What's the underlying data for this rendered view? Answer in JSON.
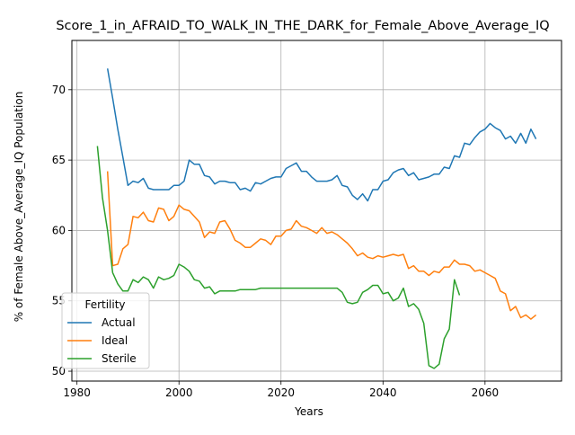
{
  "chart_data": {
    "type": "line",
    "title": "Score_1_in_AFRAID_TO_WALK_IN_THE_DARK_for_Female_Above_Average_IQ",
    "xlabel": "Years",
    "ylabel": "% of Female Above_Average_IQ Population",
    "xlim": [
      1979,
      2075
    ],
    "ylim": [
      49.3,
      73.5
    ],
    "x_ticks": [
      1980,
      2000,
      2020,
      2040,
      2060
    ],
    "y_ticks": [
      50,
      55,
      60,
      65,
      70
    ],
    "grid": true,
    "legend": {
      "title": "Fertility",
      "position": "lower-left"
    },
    "series": [
      {
        "name": "Actual",
        "color": "#1f77b4",
        "x": [
          1986,
          1987,
          1988,
          1989,
          1990,
          1991,
          1992,
          1993,
          1994,
          1995,
          1996,
          1997,
          1998,
          1999,
          2000,
          2001,
          2002,
          2003,
          2004,
          2005,
          2006,
          2007,
          2008,
          2009,
          2010,
          2011,
          2012,
          2013,
          2014,
          2015,
          2016,
          2017,
          2018,
          2019,
          2020,
          2021,
          2022,
          2023,
          2024,
          2025,
          2026,
          2027,
          2028,
          2029,
          2030,
          2031,
          2032,
          2033,
          2034,
          2035,
          2036,
          2037,
          2038,
          2039,
          2040,
          2041,
          2042,
          2043,
          2044,
          2045,
          2046,
          2047,
          2048,
          2049,
          2050,
          2051,
          2052,
          2053,
          2054,
          2055,
          2056,
          2057,
          2058,
          2059,
          2060,
          2061,
          2062,
          2063,
          2064,
          2065,
          2066,
          2067,
          2068,
          2069,
          2070
        ],
        "values": [
          71.5,
          69.4,
          67.2,
          65.2,
          63.2,
          63.5,
          63.4,
          63.7,
          63.0,
          62.9,
          62.9,
          62.9,
          62.9,
          63.2,
          63.2,
          63.5,
          65.0,
          64.7,
          64.7,
          63.9,
          63.8,
          63.3,
          63.5,
          63.5,
          63.4,
          63.4,
          62.9,
          63.0,
          62.8,
          63.4,
          63.3,
          63.5,
          63.7,
          63.8,
          63.8,
          64.4,
          64.6,
          64.8,
          64.2,
          64.2,
          63.8,
          63.5,
          63.5,
          63.5,
          63.6,
          63.9,
          63.2,
          63.1,
          62.5,
          62.2,
          62.6,
          62.1,
          62.9,
          62.9,
          63.5,
          63.6,
          64.1,
          64.3,
          64.4,
          63.9,
          64.1,
          63.6,
          63.7,
          63.8,
          64.0,
          64.0,
          64.5,
          64.4,
          65.3,
          65.2,
          66.2,
          66.1,
          66.6,
          67.0,
          67.2,
          67.6,
          67.3,
          67.1,
          66.5,
          66.7,
          66.2,
          66.9,
          66.2,
          67.2,
          66.5
        ]
      },
      {
        "name": "Ideal",
        "color": "#ff7f0e",
        "x": [
          1986,
          1987,
          1988,
          1989,
          1990,
          1991,
          1992,
          1993,
          1994,
          1995,
          1996,
          1997,
          1998,
          1999,
          2000,
          2001,
          2002,
          2003,
          2004,
          2005,
          2006,
          2007,
          2008,
          2009,
          2010,
          2011,
          2012,
          2013,
          2014,
          2015,
          2016,
          2017,
          2018,
          2019,
          2020,
          2021,
          2022,
          2023,
          2024,
          2025,
          2026,
          2027,
          2028,
          2029,
          2030,
          2031,
          2032,
          2033,
          2034,
          2035,
          2036,
          2037,
          2038,
          2039,
          2040,
          2041,
          2042,
          2043,
          2044,
          2045,
          2046,
          2047,
          2048,
          2049,
          2050,
          2051,
          2052,
          2053,
          2054,
          2055,
          2056,
          2057,
          2058,
          2059,
          2060,
          2061,
          2062,
          2063,
          2064,
          2065,
          2066,
          2067,
          2068,
          2069,
          2070
        ],
        "values": [
          64.2,
          57.5,
          57.6,
          58.7,
          59.0,
          61.0,
          60.9,
          61.3,
          60.7,
          60.6,
          61.6,
          61.5,
          60.7,
          61.0,
          61.8,
          61.5,
          61.4,
          61.0,
          60.6,
          59.5,
          59.9,
          59.8,
          60.6,
          60.7,
          60.1,
          59.3,
          59.1,
          58.8,
          58.8,
          59.1,
          59.4,
          59.3,
          59.0,
          59.6,
          59.6,
          60.0,
          60.1,
          60.7,
          60.3,
          60.2,
          60.0,
          59.8,
          60.2,
          59.8,
          59.9,
          59.7,
          59.4,
          59.1,
          58.7,
          58.2,
          58.4,
          58.1,
          58.0,
          58.2,
          58.1,
          58.2,
          58.3,
          58.2,
          58.3,
          57.3,
          57.5,
          57.1,
          57.1,
          56.8,
          57.1,
          57.0,
          57.4,
          57.4,
          57.9,
          57.6,
          57.6,
          57.5,
          57.1,
          57.2,
          57.0,
          56.8,
          56.6,
          55.7,
          55.5,
          54.3,
          54.6,
          53.8,
          54.0,
          53.7,
          54.0
        ]
      },
      {
        "name": "Sterile",
        "color": "#2ca02c",
        "x": [
          1984,
          1985,
          1986,
          1987,
          1988,
          1989,
          1990,
          1991,
          1992,
          1993,
          1994,
          1995,
          1996,
          1997,
          1998,
          1999,
          2000,
          2001,
          2002,
          2003,
          2004,
          2005,
          2006,
          2007,
          2008,
          2009,
          2010,
          2011,
          2012,
          2013,
          2014,
          2015,
          2016,
          2017,
          2018,
          2019,
          2020,
          2021,
          2022,
          2023,
          2024,
          2025,
          2026,
          2027,
          2028,
          2029,
          2030,
          2031,
          2032,
          2033,
          2034,
          2035,
          2036,
          2037,
          2038,
          2039,
          2040,
          2041,
          2042,
          2043,
          2044,
          2045,
          2046,
          2047,
          2048,
          2049,
          2050,
          2051,
          2052,
          2053,
          2054,
          2055
        ],
        "values": [
          66.0,
          62.3,
          60.0,
          57.0,
          56.2,
          55.7,
          55.7,
          56.5,
          56.3,
          56.7,
          56.5,
          55.9,
          56.7,
          56.5,
          56.6,
          56.8,
          57.6,
          57.4,
          57.1,
          56.5,
          56.4,
          55.9,
          56.0,
          55.5,
          55.7,
          55.7,
          55.7,
          55.7,
          55.8,
          55.8,
          55.8,
          55.8,
          55.9,
          55.9,
          55.9,
          55.9,
          55.9,
          55.9,
          55.9,
          55.9,
          55.9,
          55.9,
          55.9,
          55.9,
          55.9,
          55.9,
          55.9,
          55.9,
          55.6,
          54.9,
          54.8,
          54.9,
          55.6,
          55.8,
          56.1,
          56.1,
          55.5,
          55.6,
          55.0,
          55.2,
          55.9,
          54.6,
          54.8,
          54.4,
          53.4,
          50.4,
          50.2,
          50.5,
          52.3,
          53.0,
          56.5,
          55.4
        ]
      }
    ]
  }
}
